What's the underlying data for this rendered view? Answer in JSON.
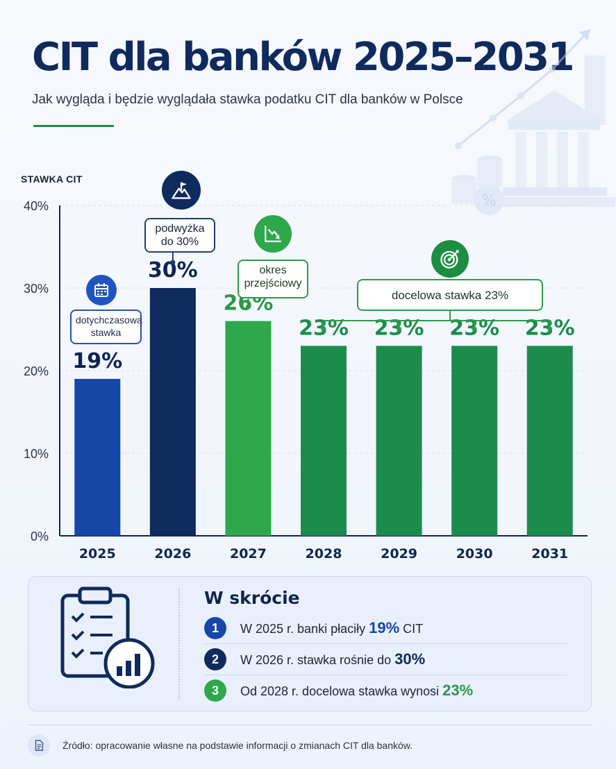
{
  "header": {
    "title": "CIT dla banków 2025–2031",
    "subtitle": "Jak wygląda i będzie wyglądała stawka podatku CIT dla banków w Polsce"
  },
  "chart_data": {
    "type": "bar",
    "title": "",
    "ylabel": "STAWKA CIT",
    "categories": [
      "2025",
      "2026",
      "2027",
      "2028",
      "2029",
      "2030",
      "2031"
    ],
    "values": [
      19,
      30,
      26,
      23,
      23,
      23,
      23
    ],
    "data_labels": [
      "19%",
      "30%",
      "26%",
      "23%",
      "23%",
      "23%",
      "23%"
    ],
    "bar_colors": [
      "#1646a8",
      "#0f2a5c",
      "#2ea84a",
      "#1b8c4c",
      "#1b8c4c",
      "#1b8c4c",
      "#1b8c4c"
    ],
    "label_colors": [
      "#0f2550",
      "#0f2550",
      "#2a9a45",
      "#1b8c4c",
      "#1b8c4c",
      "#1b8c4c",
      "#1b8c4c"
    ],
    "yticks": [
      "0%",
      "10%",
      "20%",
      "30%",
      "40%"
    ],
    "ylim": [
      0,
      40
    ],
    "grid": true
  },
  "callouts": {
    "current": "dotychczasowa stawka",
    "increase": "podwyżka do 30%",
    "transition": "okres przejściowy",
    "target": "docelowa stawka 23%"
  },
  "icons": {
    "current": "calendar-icon",
    "increase": "mountain-flag-icon",
    "transition": "chart-down-icon",
    "target": "target-icon"
  },
  "summary": {
    "title": "W skrócie",
    "items": [
      {
        "num": "1",
        "text": "W 2025 r. banki płaciły",
        "highlight": "19%",
        "after": "CIT",
        "color": "#1646a8"
      },
      {
        "num": "2",
        "text": "W 2026 r. stawka rośnie do",
        "highlight": "30%",
        "after": "",
        "color": "#0f2a5c"
      },
      {
        "num": "3",
        "text": "Od 2028 r. docelowa stawka wynosi",
        "highlight": "23%",
        "after": "",
        "color": "#2ea84a"
      }
    ]
  },
  "source": "Źródło: opracowanie własne na podstawie informacji o zmianach CIT dla banków.",
  "colors": {
    "navy": "#0f2a5c",
    "blue": "#1646a8",
    "green": "#2ea84a",
    "dark_green": "#1b8c4c"
  }
}
